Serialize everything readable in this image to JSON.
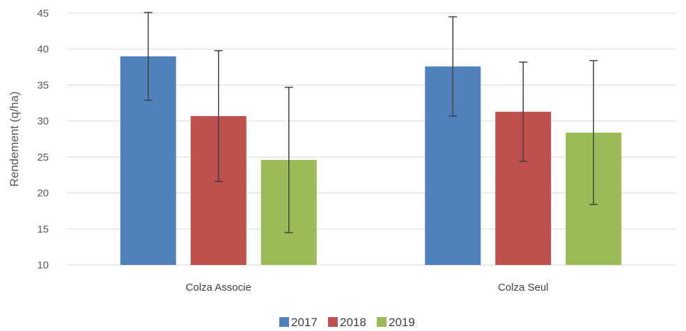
{
  "chart_data": {
    "type": "bar",
    "title": "",
    "xlabel": "",
    "ylabel": "Rendement (q/ha)",
    "ylim": [
      10,
      45
    ],
    "yticks": [
      10,
      15,
      20,
      25,
      30,
      35,
      40,
      45
    ],
    "grid": true,
    "legend_position": "bottom",
    "categories": [
      "Colza Associe",
      "Colza Seul"
    ],
    "series": [
      {
        "name": "2017",
        "color": "#4F81BD",
        "values": [
          39.0,
          37.6
        ],
        "error": [
          6.1,
          6.9
        ]
      },
      {
        "name": "2018",
        "color": "#C0504D",
        "values": [
          30.7,
          31.3
        ],
        "error": [
          9.1,
          6.9
        ]
      },
      {
        "name": "2019",
        "color": "#9BBB59",
        "values": [
          24.6,
          28.4
        ],
        "error": [
          10.1,
          10.0
        ]
      }
    ]
  }
}
